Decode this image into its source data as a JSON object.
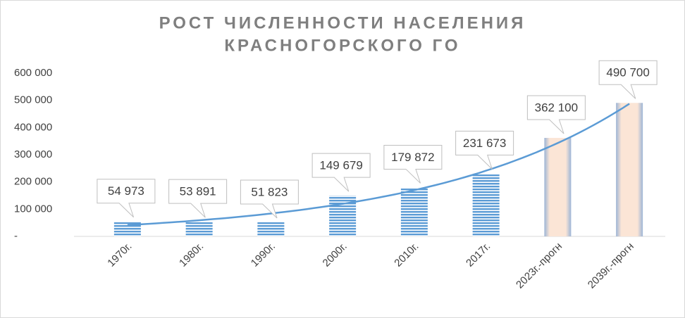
{
  "chart_data": {
    "type": "bar",
    "title": [
      "РОСТ ЧИСЛЕННОСТИ НАСЕЛЕНИЯ",
      "КРАСНОГОРСКОГО ГО"
    ],
    "categories": [
      "1970г.",
      "1980г.",
      "1990г.",
      "2000г.",
      "2010г.",
      "2017г.",
      "2023г.-прогн",
      "2039г.-прогн"
    ],
    "values": [
      54973,
      53891,
      51823,
      149679,
      179872,
      231673,
      362100,
      490700
    ],
    "value_labels": [
      "54 973",
      "53 891",
      "51 823",
      "149 679",
      "179 872",
      "231 673",
      "362 100",
      "490 700"
    ],
    "colors": [
      "#5b9bd5",
      "#5b9bd5",
      "#5b9bd5",
      "#5b9bd5",
      "#5b9bd5",
      "#5b9bd5",
      "#fbe5d6",
      "#fbe5d6"
    ],
    "trendline": "exponential",
    "trendline_color": "#5b9bd5",
    "ylim": [
      0,
      600000
    ],
    "yticks": [
      {
        "value": 0,
        "label": "-"
      },
      {
        "value": 100000,
        "label": "100 000"
      },
      {
        "value": 200000,
        "label": "200 000"
      },
      {
        "value": 300000,
        "label": "300 000"
      },
      {
        "value": 400000,
        "label": "400 000"
      },
      {
        "value": 500000,
        "label": "500 000"
      },
      {
        "value": 600000,
        "label": "600 000"
      }
    ],
    "grid": false
  }
}
